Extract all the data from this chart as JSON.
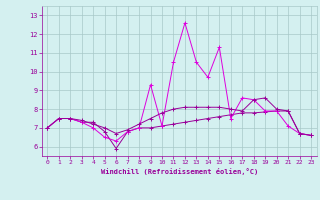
{
  "xlabel": "Windchill (Refroidissement éolien,°C)",
  "xlim": [
    -0.5,
    23.5
  ],
  "ylim": [
    5.5,
    13.5
  ],
  "xticks": [
    0,
    1,
    2,
    3,
    4,
    5,
    6,
    7,
    8,
    9,
    10,
    11,
    12,
    13,
    14,
    15,
    16,
    17,
    18,
    19,
    20,
    21,
    22,
    23
  ],
  "yticks": [
    6,
    7,
    8,
    9,
    10,
    11,
    12,
    13
  ],
  "background_color": "#d4f0f0",
  "grid_color": "#a8c8c8",
  "line_color1": "#990099",
  "line_color2": "#dd00dd",
  "lines": [
    [
      7.0,
      7.5,
      7.5,
      7.3,
      7.3,
      6.8,
      5.9,
      6.8,
      7.0,
      7.0,
      7.1,
      7.2,
      7.3,
      7.4,
      7.5,
      7.6,
      7.7,
      7.8,
      7.8,
      7.85,
      7.9,
      7.9,
      6.7,
      6.6
    ],
    [
      7.0,
      7.5,
      7.5,
      7.3,
      7.0,
      6.5,
      6.3,
      6.8,
      7.0,
      9.3,
      7.1,
      10.5,
      12.6,
      10.5,
      9.7,
      11.3,
      7.5,
      8.6,
      8.5,
      7.9,
      7.9,
      7.1,
      6.7,
      6.6
    ],
    [
      7.0,
      7.5,
      7.5,
      7.4,
      7.2,
      7.0,
      6.7,
      6.9,
      7.2,
      7.5,
      7.8,
      8.0,
      8.1,
      8.1,
      8.1,
      8.1,
      8.0,
      7.9,
      8.5,
      8.6,
      8.0,
      7.9,
      6.7,
      6.6
    ]
  ]
}
